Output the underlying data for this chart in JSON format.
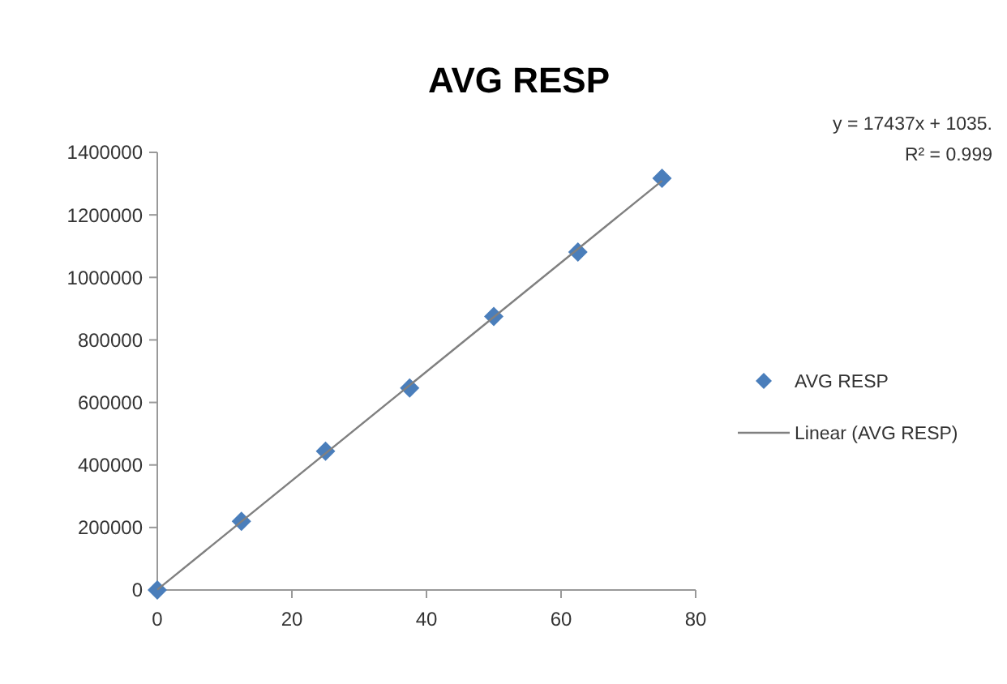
{
  "chart_data": {
    "type": "scatter",
    "title": "AVG RESP",
    "xlim": [
      0,
      80
    ],
    "xticks": [
      0,
      20,
      40,
      60,
      80
    ],
    "ylim": [
      0,
      1400000
    ],
    "yticks": [
      0,
      200000,
      400000,
      600000,
      800000,
      1000000,
      1200000,
      1400000
    ],
    "grid": false,
    "legend": "right",
    "marker": "diamond",
    "annotations": [
      "y = 17437x + 1035.",
      "R² = 0.999"
    ],
    "series": [
      {
        "name": "AVG RESP",
        "color": "#4a7ebb",
        "x": [
          0,
          12.5,
          25,
          37.5,
          50,
          62.5,
          75
        ],
        "values": [
          0,
          220000,
          444000,
          646000,
          875000,
          1081000,
          1317000
        ]
      },
      {
        "name": "Linear (AVG RESP)",
        "type": "line",
        "color": "#808080",
        "marker": "none",
        "line_style": "solid",
        "x": [
          0,
          75
        ],
        "values": [
          1000,
          1309000
        ]
      }
    ]
  }
}
